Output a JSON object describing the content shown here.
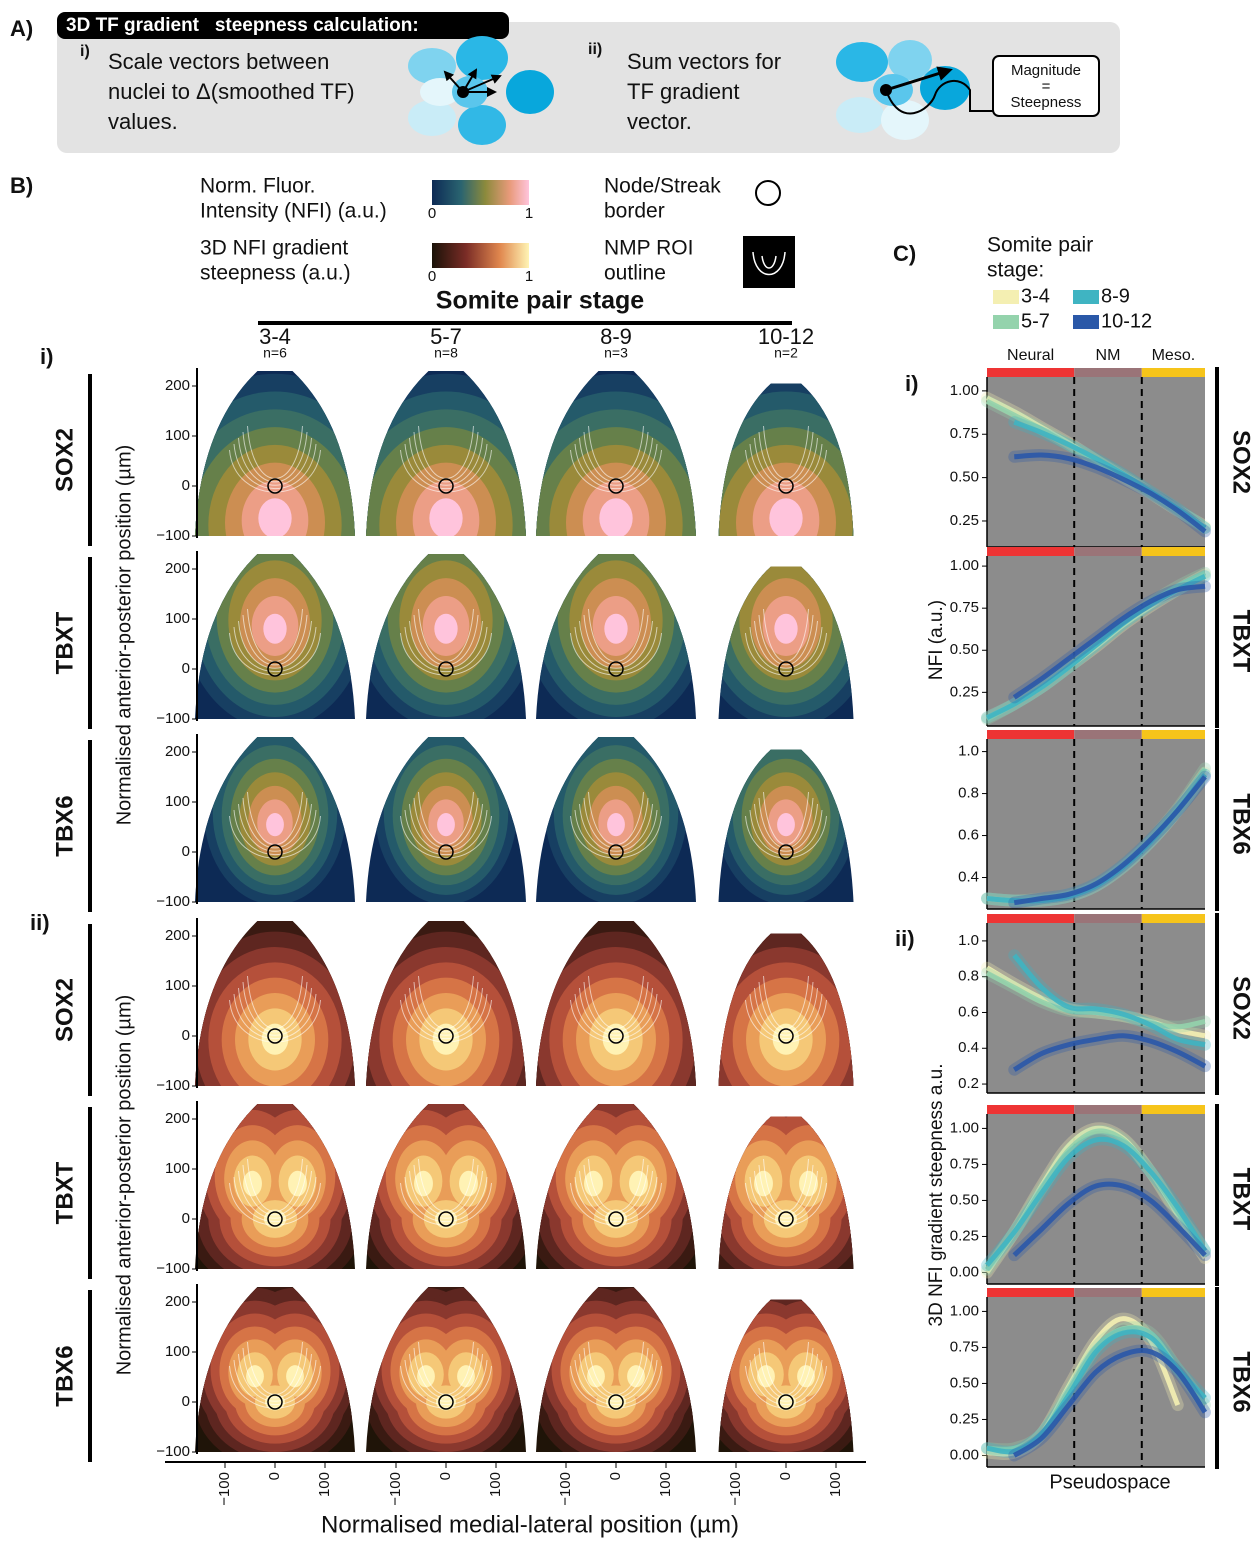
{
  "panel_a": {
    "label": "A)",
    "title": "3D TF gradient   steepness calculation:",
    "steps": [
      {
        "label": "i)",
        "lines": [
          "Scale vectors between",
          "nuclei to Δ(smoothed TF)",
          "values."
        ]
      },
      {
        "label": "ii)",
        "lines": [
          "Sum vectors for",
          "TF gradient",
          "vector."
        ]
      }
    ],
    "box": [
      "Magnitude",
      "=",
      "Steepness"
    ]
  },
  "panel_b": {
    "label": "B)",
    "legend": {
      "nfi": {
        "lines": [
          "Norm. Fluor.",
          "Intensity (NFI) (a.u.)"
        ],
        "min": 0,
        "max": 1
      },
      "steepness": {
        "lines": [
          "3D NFI gradient",
          "steepness (a.u.)"
        ],
        "min": 0,
        "max": 1
      },
      "node": [
        "Node/Streak",
        "border"
      ],
      "roi": [
        "NMP ROI",
        "outline"
      ]
    },
    "stage_title": "Somite pair stage",
    "stages": [
      {
        "label": "3-4",
        "n": "n=6"
      },
      {
        "label": "5-7",
        "n": "n=8"
      },
      {
        "label": "8-9",
        "n": "n=3"
      },
      {
        "label": "10-12",
        "n": "n=2"
      }
    ],
    "sections": [
      {
        "label": "i)",
        "genes": [
          "SOX2",
          "TBXT",
          "TBX6"
        ]
      },
      {
        "label": "ii)",
        "genes": [
          "SOX2",
          "TBXT",
          "TBX6"
        ]
      }
    ],
    "y_label": "Normalised anterior-posterior position (µm)",
    "yticks": [
      {
        "value": -100,
        "label": "−100"
      },
      0,
      100,
      200
    ],
    "xticks": [
      {
        "value": -100,
        "label": "−100"
      },
      0,
      100
    ],
    "x_label": "Normalised medial-lateral position (µm)"
  },
  "panel_c": {
    "label": "C)",
    "legend_title": [
      "Somite pair",
      "stage:"
    ],
    "stages": [
      {
        "name": "3-4",
        "color": "#f4efb2"
      },
      {
        "name": "5-7",
        "color": "#94d3ac"
      },
      {
        "name": "8-9",
        "color": "#3fb4c2"
      },
      {
        "name": "10-12",
        "color": "#2a58a8"
      }
    ],
    "regions": [
      "Neural",
      "NM",
      "Meso."
    ],
    "boundaries": [
      0.4,
      0.71
    ],
    "sections": [
      {
        "label": "i)",
        "y_label": "NFI (a.u.)"
      },
      {
        "label": "ii)",
        "y_label": "3D NFI gradient steepness a.u."
      }
    ],
    "x_label": "Pseudospace"
  },
  "chart_data": [
    {
      "type": "line",
      "title": "SOX2",
      "x": [
        0,
        0.125,
        0.25,
        0.375,
        0.5,
        0.625,
        0.75,
        0.875,
        1
      ],
      "xlim": [
        0,
        1
      ],
      "ylim": [
        0.1,
        1.08
      ],
      "yticks": [
        0.25,
        {
          "value": 0.5,
          "label": "0.50"
        },
        0.75,
        {
          "value": 1,
          "label": "1.00"
        }
      ],
      "series": [
        {
          "values": [
            0.96,
            0.88,
            0.79,
            0.7,
            0.6,
            0.5,
            0.41,
            0.31,
            0.22
          ]
        },
        {
          "values": [
            0.94,
            0.86,
            0.78,
            0.69,
            0.6,
            0.51,
            0.41,
            0.31,
            0.21
          ]
        },
        {
          "values": [
            null,
            0.82,
            0.76,
            0.69,
            0.61,
            0.52,
            0.42,
            0.32,
            0.21
          ]
        },
        {
          "values": [
            null,
            0.62,
            0.63,
            0.61,
            0.56,
            0.49,
            0.41,
            0.31,
            0.19
          ]
        }
      ]
    },
    {
      "type": "line",
      "title": "TBXT",
      "x": [
        0,
        0.125,
        0.25,
        0.375,
        0.5,
        0.625,
        0.75,
        0.875,
        1
      ],
      "xlim": [
        0,
        1
      ],
      "ylim": [
        0.05,
        1.06
      ],
      "yticks": [
        0.25,
        {
          "value": 0.5,
          "label": "0.50"
        },
        0.75,
        {
          "value": 1,
          "label": "1.00"
        }
      ],
      "series": [
        {
          "values": [
            0.1,
            0.18,
            0.28,
            0.4,
            0.52,
            0.65,
            0.76,
            0.86,
            0.95
          ]
        },
        {
          "values": [
            0.09,
            0.18,
            0.28,
            0.4,
            0.53,
            0.66,
            0.78,
            0.88,
            0.96
          ]
        },
        {
          "values": [
            0.1,
            0.18,
            0.28,
            0.4,
            0.53,
            0.66,
            0.77,
            0.86,
            0.94
          ]
        },
        {
          "values": [
            null,
            0.22,
            0.33,
            0.45,
            0.57,
            0.69,
            0.79,
            0.86,
            0.88
          ]
        }
      ]
    },
    {
      "type": "line",
      "title": "TBX6",
      "x": [
        0,
        0.125,
        0.25,
        0.375,
        0.5,
        0.625,
        0.75,
        0.875,
        1
      ],
      "xlim": [
        0,
        1
      ],
      "ylim": [
        0.25,
        1.06
      ],
      "yticks": [
        0.4,
        0.6,
        0.8,
        {
          "value": 1,
          "label": "1.0"
        }
      ],
      "series": [
        {
          "values": [
            0.3,
            0.29,
            0.29,
            0.31,
            0.36,
            0.45,
            0.57,
            0.72,
            0.9
          ]
        },
        {
          "values": [
            0.3,
            0.29,
            0.3,
            0.32,
            0.37,
            0.46,
            0.58,
            0.73,
            0.92
          ]
        },
        {
          "values": [
            0.3,
            0.29,
            0.29,
            0.31,
            0.36,
            0.45,
            0.57,
            0.72,
            0.89
          ]
        },
        {
          "values": [
            null,
            0.28,
            0.3,
            0.32,
            0.37,
            0.46,
            0.58,
            0.72,
            0.88
          ]
        }
      ]
    },
    {
      "type": "line",
      "title": "SOX2",
      "x": [
        0,
        0.125,
        0.25,
        0.375,
        0.5,
        0.625,
        0.75,
        0.875,
        1
      ],
      "xlim": [
        0,
        1
      ],
      "ylim": [
        0.15,
        1.1
      ],
      "yticks": [
        0.2,
        0.4,
        0.6,
        0.8,
        {
          "value": 1,
          "label": "1.0"
        }
      ],
      "series": [
        {
          "values": [
            0.85,
            0.76,
            0.68,
            0.62,
            0.6,
            0.58,
            0.55,
            0.5,
            0.47
          ]
        },
        {
          "values": [
            0.82,
            0.74,
            0.66,
            0.61,
            0.6,
            0.58,
            0.54,
            0.52,
            0.55
          ]
        },
        {
          "values": [
            null,
            0.92,
            0.74,
            0.63,
            0.62,
            0.59,
            0.53,
            0.45,
            0.42
          ]
        },
        {
          "values": [
            null,
            0.28,
            0.37,
            0.42,
            0.45,
            0.47,
            0.44,
            0.38,
            0.3
          ]
        }
      ]
    },
    {
      "type": "line",
      "title": "TBXT",
      "x": [
        0,
        0.125,
        0.25,
        0.375,
        0.5,
        0.625,
        0.75,
        0.875,
        1
      ],
      "xlim": [
        0,
        1
      ],
      "ylim": [
        -0.08,
        1.1
      ],
      "yticks": [
        {
          "value": 0,
          "label": "0.00"
        },
        0.25,
        {
          "value": 0.5,
          "label": "0.50"
        },
        0.75,
        {
          "value": 1,
          "label": "1.00"
        }
      ],
      "series": [
        {
          "values": [
            0,
            0.28,
            0.6,
            0.88,
            1,
            0.93,
            0.7,
            0.4,
            0.1
          ]
        },
        {
          "values": [
            0.02,
            0.28,
            0.58,
            0.85,
            0.98,
            0.92,
            0.7,
            0.42,
            0.15
          ]
        },
        {
          "values": [
            0.05,
            0.28,
            0.55,
            0.8,
            0.92,
            0.88,
            0.7,
            0.45,
            0.15
          ]
        },
        {
          "values": [
            null,
            0.12,
            0.3,
            0.48,
            0.6,
            0.6,
            0.5,
            0.32,
            0.12
          ]
        }
      ]
    },
    {
      "type": "line",
      "title": "TBX6",
      "x": [
        0,
        0.125,
        0.25,
        0.375,
        0.5,
        0.625,
        0.75,
        0.875,
        1
      ],
      "xlim": [
        0,
        1
      ],
      "ylim": [
        -0.08,
        1.1
      ],
      "yticks": [
        {
          "value": 0,
          "label": "0.00"
        },
        0.25,
        {
          "value": 0.5,
          "label": "0.50"
        },
        0.75,
        {
          "value": 1,
          "label": "1.00"
        }
      ],
      "series": [
        {
          "values": [
            0.02,
            0.02,
            0.15,
            0.48,
            0.8,
            0.95,
            0.8,
            0.35,
            null
          ]
        },
        {
          "values": [
            0.05,
            0.05,
            0.15,
            0.45,
            0.75,
            0.88,
            0.85,
            0.6,
            0.35
          ]
        },
        {
          "values": [
            0.05,
            0.03,
            0.15,
            0.42,
            0.72,
            0.85,
            0.82,
            0.6,
            0.4
          ]
        },
        {
          "values": [
            null,
            0,
            0.12,
            0.35,
            0.58,
            0.7,
            0.72,
            0.58,
            0.3
          ]
        }
      ]
    }
  ]
}
